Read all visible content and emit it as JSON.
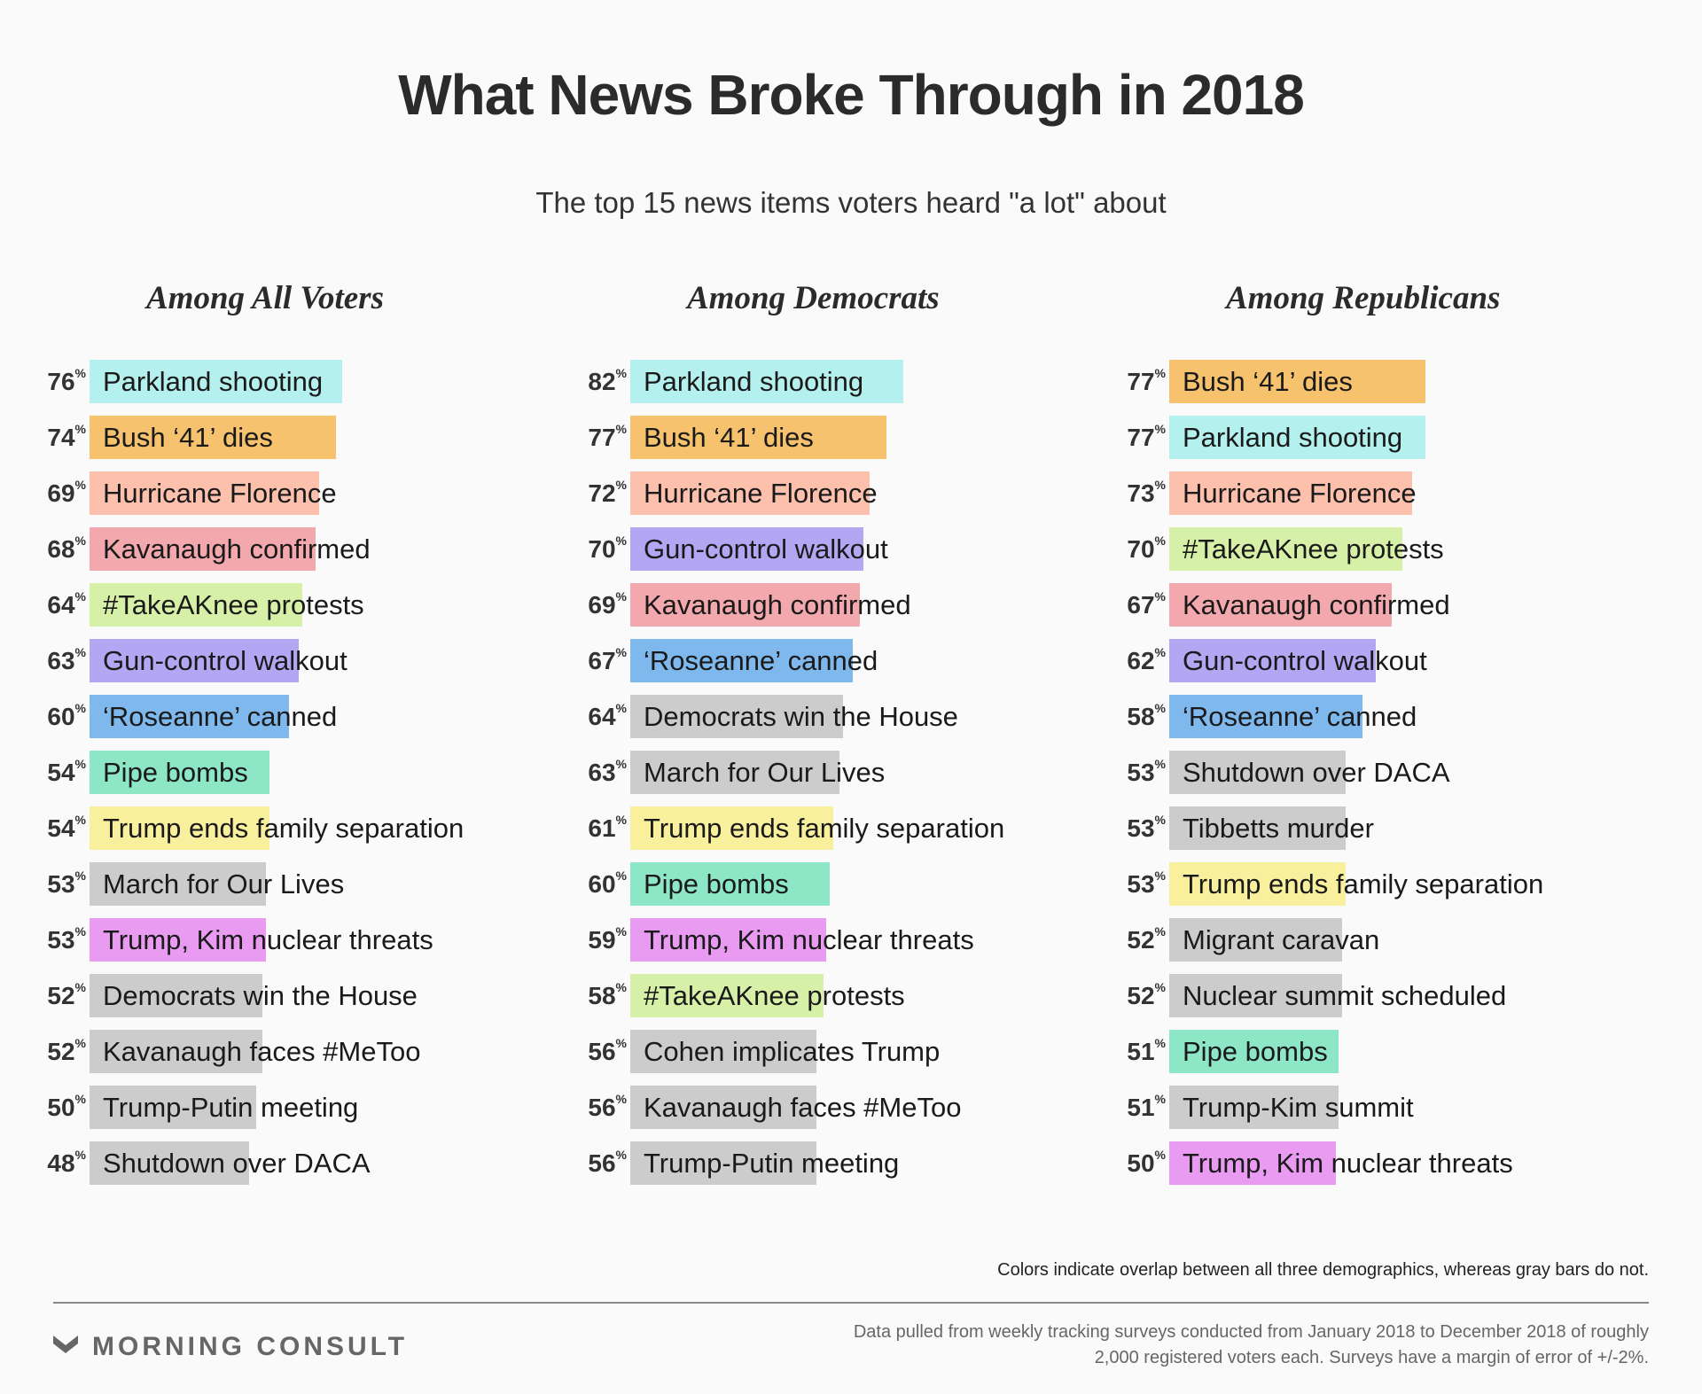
{
  "title": "What News Broke Through in 2018",
  "subtitle": "The top 15 news items voters heard \"a lot\" about",
  "note": "Colors indicate overlap between all three demographics, whereas gray bars do not.",
  "brand": "MORNING CONSULT",
  "source": "Data pulled from weekly tracking surveys conducted from January 2018 to December 2018 of roughly 2,000 registered voters each. Surveys have a margin of error of +/-2%.",
  "colors": {
    "Parkland shooting": "#b3f0ee",
    "Bush ‘41’ dies": "#f7c26e",
    "Hurricane Florence": "#fcc0ad",
    "Kavanaugh confirmed": "#f2a8ad",
    "#TakeAKnee protests": "#d7f0a8",
    "Gun-control walkout": "#b3a6f2",
    "‘Roseanne’ canned": "#7fb8ec",
    "Pipe bombs": "#8de6c6",
    "Trump ends family separation": "#f9f09e",
    "Trump, Kim nuclear threats": "#e99bf2",
    "gray": "#cccccc"
  },
  "chart_data": [
    {
      "type": "bar",
      "title": "Among All Voters",
      "unit": "%",
      "categories": [
        "Parkland shooting",
        "Bush ‘41’ dies",
        "Hurricane Florence",
        "Kavanaugh confirmed",
        "#TakeAKnee protests",
        "Gun-control walkout",
        "‘Roseanne’ canned",
        "Pipe bombs",
        "Trump ends family separation",
        "March for Our Lives",
        "Trump, Kim nuclear threats",
        "Democrats win the House",
        "Kavanaugh faces #MeToo",
        "Trump-Putin meeting",
        "Shutdown over DACA"
      ],
      "values": [
        76,
        74,
        69,
        68,
        64,
        63,
        60,
        54,
        54,
        53,
        53,
        52,
        52,
        50,
        48
      ]
    },
    {
      "type": "bar",
      "title": "Among Democrats",
      "unit": "%",
      "categories": [
        "Parkland shooting",
        "Bush ‘41’ dies",
        "Hurricane Florence",
        "Gun-control walkout",
        "Kavanaugh confirmed",
        "‘Roseanne’ canned",
        "Democrats win the House",
        "March for Our Lives",
        "Trump ends family separation",
        "Pipe bombs",
        "Trump, Kim nuclear threats",
        "#TakeAKnee protests",
        "Cohen implicates Trump",
        "Kavanaugh faces #MeToo",
        "Trump-Putin meeting"
      ],
      "values": [
        82,
        77,
        72,
        70,
        69,
        67,
        64,
        63,
        61,
        60,
        59,
        58,
        56,
        56,
        56
      ]
    },
    {
      "type": "bar",
      "title": "Among Republicans",
      "unit": "%",
      "categories": [
        "Bush ‘41’ dies",
        "Parkland shooting",
        "Hurricane Florence",
        "#TakeAKnee protests",
        "Kavanaugh confirmed",
        "Gun-control walkout",
        "‘Roseanne’ canned",
        "Shutdown over DACA",
        "Tibbetts murder",
        "Trump ends family separation",
        "Migrant caravan",
        "Nuclear summit scheduled",
        "Pipe bombs",
        "Trump-Kim summit",
        "Trump, Kim nuclear threats"
      ],
      "values": [
        77,
        77,
        73,
        70,
        67,
        62,
        58,
        53,
        53,
        53,
        52,
        52,
        51,
        51,
        50
      ]
    }
  ]
}
